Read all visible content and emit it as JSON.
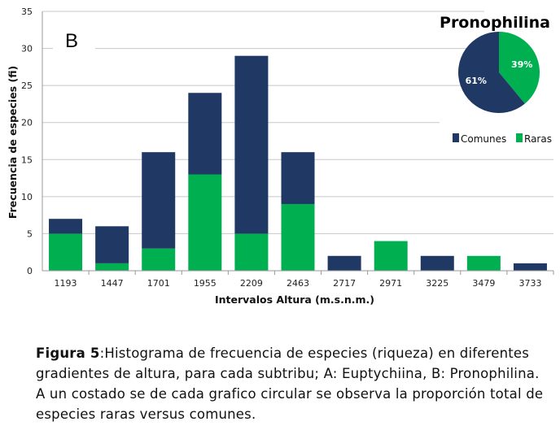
{
  "chart_data": {
    "type": "bar",
    "stacked": true,
    "panel_label": "B",
    "categories": [
      "1193",
      "1447",
      "1701",
      "1955",
      "2209",
      "2463",
      "2717",
      "2971",
      "3225",
      "3479",
      "3733"
    ],
    "series": [
      {
        "name": "Raras",
        "color": "#00b050",
        "values": [
          5,
          1,
          3,
          13,
          5,
          9,
          0,
          4,
          0,
          2,
          0
        ]
      },
      {
        "name": "Comunes",
        "color": "#1f3864",
        "values": [
          2,
          5,
          13,
          11,
          24,
          7,
          2,
          0,
          2,
          0,
          1
        ]
      }
    ],
    "xlabel": "Intervalos Altura (m.s.n.m.)",
    "ylabel": "Frecuencia de especies (fi)",
    "ylim": [
      0,
      35
    ],
    "yticks": [
      0,
      5,
      10,
      15,
      20,
      25,
      30,
      35
    ],
    "grid": true,
    "legend": {
      "placement": "right",
      "entries": [
        "Comunes",
        "Raras"
      ]
    },
    "inset_pie": {
      "title": "Pronophilina",
      "slices": [
        {
          "name": "Raras",
          "value": 39,
          "label": "39%",
          "color": "#00b050"
        },
        {
          "name": "Comunes",
          "value": 61,
          "label": "61%",
          "color": "#1f3864"
        }
      ]
    }
  },
  "caption": {
    "label": "Figura 5",
    "text": ":Histograma de frecuencia de especies (riqueza) en diferentes gradientes de altura, para cada subtribu; A: Euptychiina, B: Pronophilina. A un costado se de cada grafico circular se observa la proporción total de especies raras versus comunes."
  }
}
